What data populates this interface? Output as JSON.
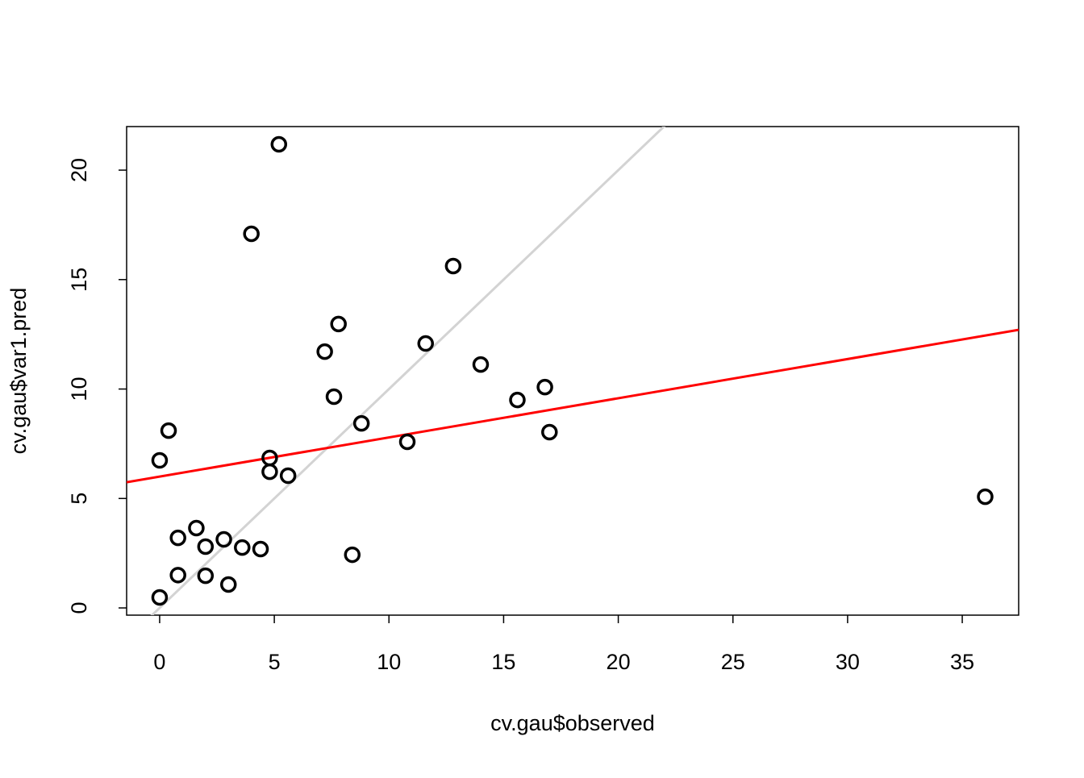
{
  "chart_data": {
    "type": "scatter",
    "x_label": "cv.gau$observed",
    "y_label": "cv.gau$var1.pred",
    "series": [
      {
        "color": "#000000",
        "x": [
          0,
          0,
          0.39,
          0.8,
          0.8,
          1.6,
          2.0,
          2.0,
          2.8,
          3.0,
          3.6,
          4.0,
          4.4,
          4.8,
          4.8,
          5.2,
          5.6,
          7.2,
          7.6,
          7.8,
          8.4,
          8.8,
          10.8,
          11.6,
          12.8,
          14.0,
          15.6,
          16.8,
          17.0,
          36.0
        ],
        "values": [
          0.48,
          6.74,
          8.1,
          3.2,
          1.5,
          3.65,
          2.8,
          1.47,
          3.13,
          1.07,
          2.76,
          17.09,
          2.69,
          6.85,
          6.22,
          21.18,
          6.04,
          11.71,
          9.65,
          12.97,
          2.43,
          8.43,
          7.59,
          12.08,
          15.62,
          11.12,
          9.5,
          10.09,
          8.03,
          5.08
        ]
      }
    ],
    "lines": [
      {
        "intercept": 0,
        "slope": 1,
        "color": "#d3d3d3"
      },
      {
        "intercept": 6.0,
        "slope": 0.179,
        "color": "#ff0000"
      }
    ],
    "xlim": [
      -1.44,
      37.46
    ],
    "xticks": [
      0,
      5,
      10,
      15,
      20,
      25,
      30,
      35
    ],
    "ylim": [
      -0.33,
      21.99
    ],
    "yticks": [
      0,
      5,
      10,
      15,
      20
    ]
  }
}
